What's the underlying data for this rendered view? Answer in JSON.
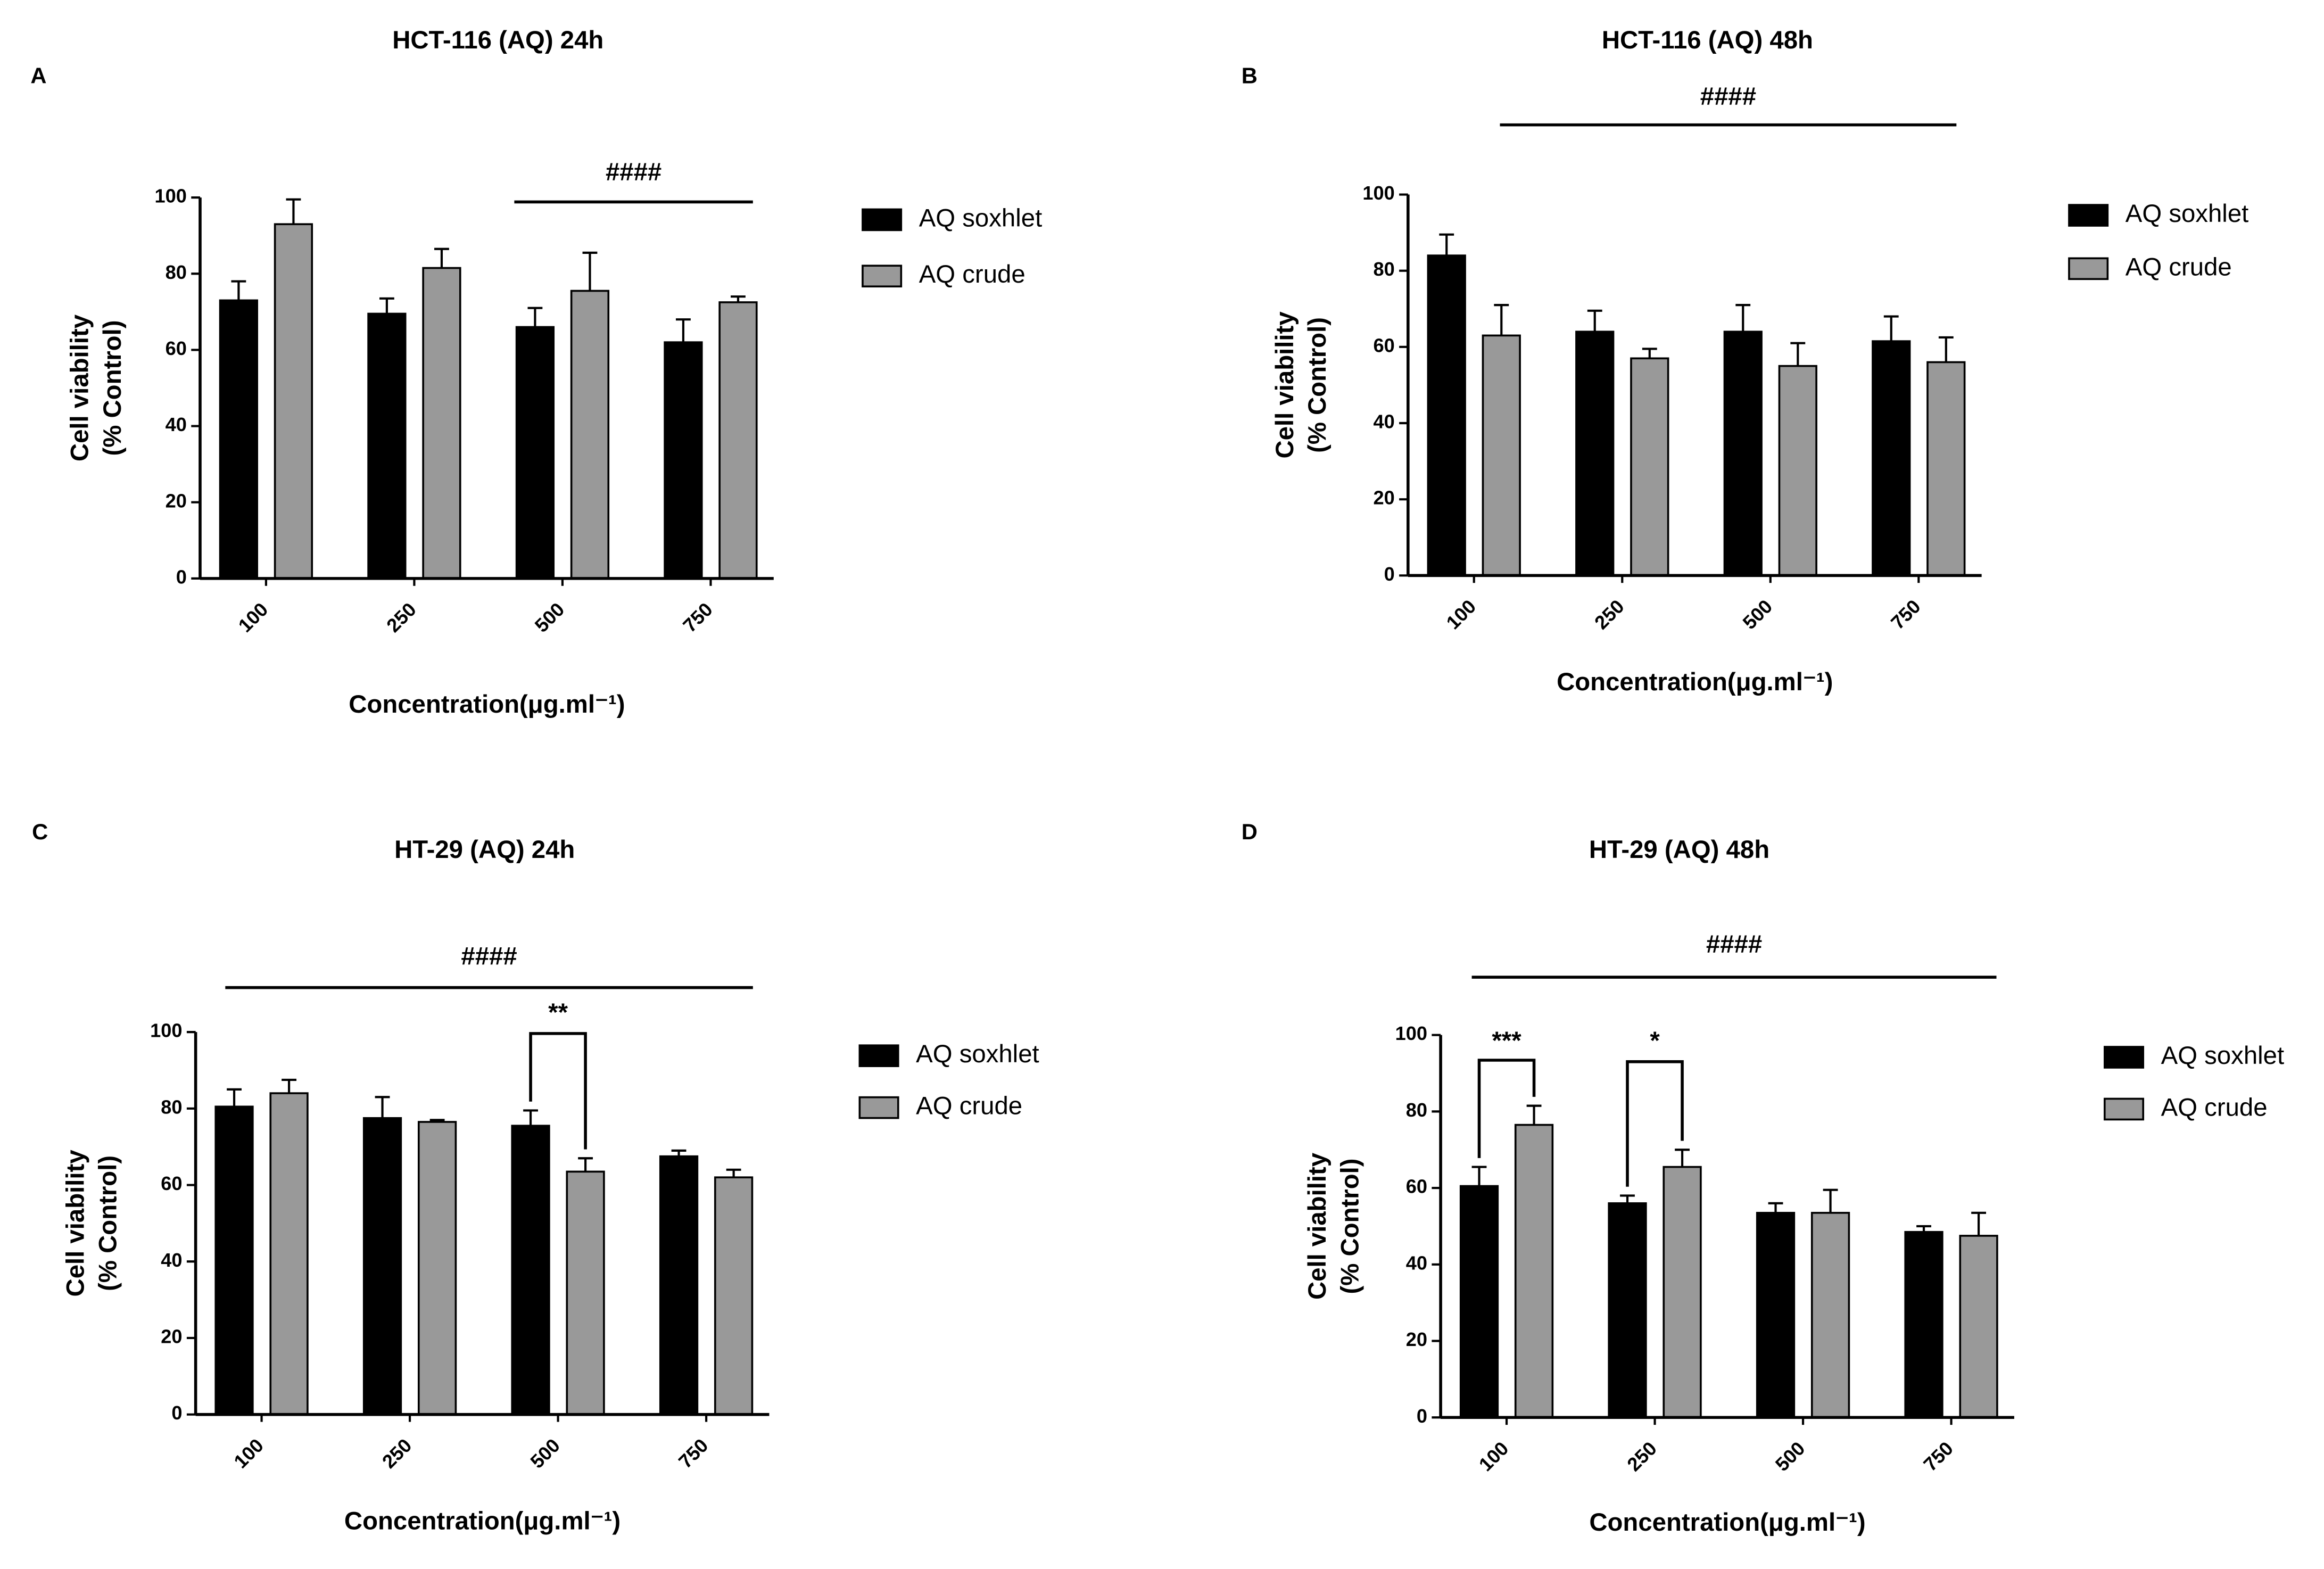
{
  "chart_data": [
    {
      "type": "bar",
      "letter": "A",
      "title": "HCT-116 (AQ) 24h",
      "y_label": [
        "Cell viability",
        "(% Control)"
      ],
      "x_label": "Concentration(μg.ml⁻¹)",
      "categories": [
        "100",
        "250",
        "500",
        "750"
      ],
      "ylim": [
        0,
        100
      ],
      "yticks": [
        0,
        20,
        40,
        60,
        80,
        100
      ],
      "series": [
        {
          "name": "AQ soxhlet",
          "color": "#000000",
          "values": [
            73,
            69.5,
            66,
            62
          ],
          "errors": [
            5,
            4,
            5,
            6
          ]
        },
        {
          "name": "AQ crude",
          "color": "#999999",
          "values": [
            93,
            81.5,
            75.5,
            72.5
          ],
          "errors": [
            6.5,
            5,
            10,
            1.5
          ]
        }
      ],
      "annotations": [
        {
          "text": "####"
        }
      ]
    },
    {
      "type": "bar",
      "letter": "B",
      "title": "HCT-116 (AQ) 48h",
      "y_label": [
        "Cell viability",
        "(% Control)"
      ],
      "x_label": "Concentration(μg.ml⁻¹)",
      "categories": [
        "100",
        "250",
        "500",
        "750"
      ],
      "ylim": [
        0,
        100
      ],
      "yticks": [
        0,
        20,
        40,
        60,
        80,
        100
      ],
      "series": [
        {
          "name": "AQ soxhlet",
          "color": "#000000",
          "values": [
            84,
            64,
            64,
            61.5
          ],
          "errors": [
            5.5,
            5.5,
            7,
            6.5
          ]
        },
        {
          "name": "AQ crude",
          "color": "#999999",
          "values": [
            63,
            57,
            55,
            56
          ],
          "errors": [
            8,
            2.5,
            6,
            6.5
          ]
        }
      ],
      "annotations": [
        {
          "text": "####"
        }
      ]
    },
    {
      "type": "bar",
      "letter": "C",
      "title": "HT-29 (AQ) 24h",
      "y_label": [
        "Cell viability",
        "(% Control)"
      ],
      "x_label": "Concentration(μg.ml⁻¹)",
      "categories": [
        "100",
        "250",
        "500",
        "750"
      ],
      "ylim": [
        0,
        100
      ],
      "yticks": [
        0,
        20,
        40,
        60,
        80,
        100
      ],
      "series": [
        {
          "name": "AQ soxhlet",
          "color": "#000000",
          "values": [
            80.5,
            77.5,
            75.5,
            67.5
          ],
          "errors": [
            4.5,
            5.5,
            4,
            1.5
          ]
        },
        {
          "name": "AQ crude",
          "color": "#999999",
          "values": [
            84,
            76.5,
            63.5,
            62
          ],
          "errors": [
            3.5,
            0.5,
            3.5,
            2
          ]
        }
      ],
      "annotations": [
        {
          "text": "####"
        },
        {
          "text": "**"
        }
      ]
    },
    {
      "type": "bar",
      "letter": "D",
      "title": "HT-29 (AQ) 48h",
      "y_label": [
        "Cell viability",
        "(% Control)"
      ],
      "x_label": "Concentration(μg.ml⁻¹)",
      "categories": [
        "100",
        "250",
        "500",
        "750"
      ],
      "ylim": [
        0,
        100
      ],
      "yticks": [
        0,
        20,
        40,
        60,
        80,
        100
      ],
      "series": [
        {
          "name": "AQ soxhlet",
          "color": "#000000",
          "values": [
            60.5,
            56,
            53.5,
            48.5
          ],
          "errors": [
            5,
            2,
            2.5,
            1.5
          ]
        },
        {
          "name": "AQ crude",
          "color": "#999999",
          "values": [
            76.5,
            65.5,
            53.5,
            47.5
          ],
          "errors": [
            5,
            4.5,
            6,
            6
          ]
        }
      ],
      "annotations": [
        {
          "text": "####"
        },
        {
          "text": "***"
        },
        {
          "text": "*"
        }
      ]
    }
  ]
}
